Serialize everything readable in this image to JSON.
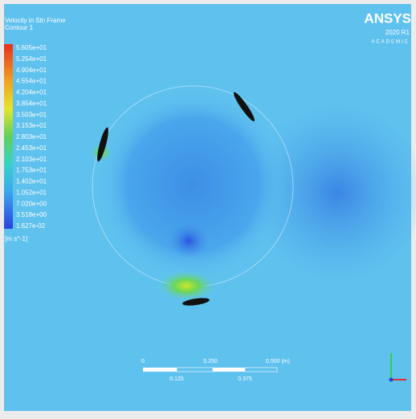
{
  "header": {
    "title": "Velocity in Stn Frame",
    "subtitle": "Contour 1"
  },
  "legend": {
    "labels": [
      "5.605e+01",
      "5.254e+01",
      "4.904e+01",
      "4.554e+01",
      "4.204e+01",
      "3.854e+01",
      "3.503e+01",
      "3.153e+01",
      "2.803e+01",
      "2.453e+01",
      "2.103e+01",
      "1.753e+01",
      "1.402e+01",
      "1.052e+01",
      "7.020e+00",
      "3.518e+00",
      "1.627e-02"
    ],
    "unit": "[m s^-1]"
  },
  "logo": {
    "brand": "ANSYS",
    "version": "2020 R1",
    "edition": "ACADEMIC"
  },
  "scale_bar": {
    "top_labels": [
      "0",
      "0.250",
      "0.500 (m)"
    ],
    "bottom_labels": [
      "0.125",
      "0.375"
    ]
  }
}
